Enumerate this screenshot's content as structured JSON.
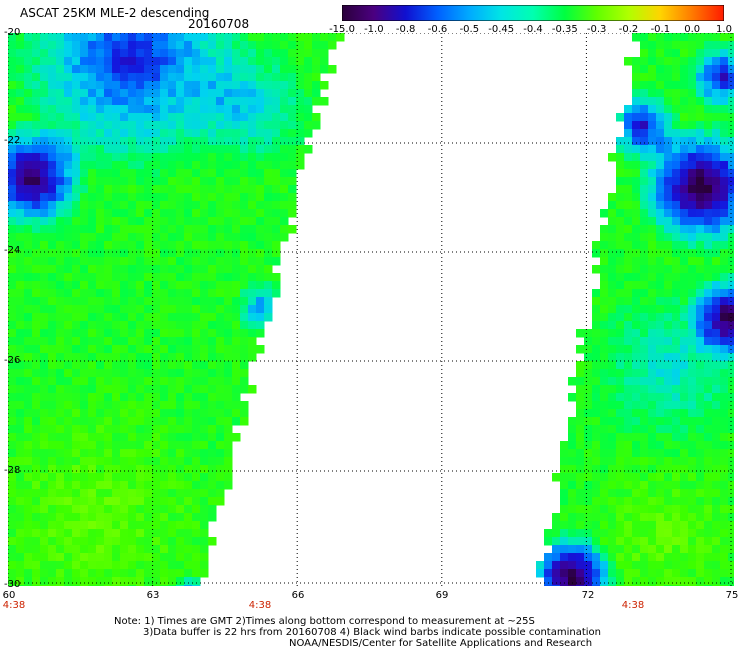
{
  "header": {
    "title": "ASCAT 25KM MLE-2 descending",
    "date": "20160708"
  },
  "colorbar": {
    "ticks": [
      "-15.0",
      "-1.0",
      "-0.8",
      "-0.6",
      "-0.5",
      "-0.45",
      "-0.4",
      "-0.35",
      "-0.3",
      "-0.2",
      "-0.1",
      "0.0",
      "1.0"
    ],
    "colors": [
      "#2a003a",
      "#4b0080",
      "#1010d0",
      "#0060ff",
      "#00aaff",
      "#00e5e5",
      "#00ffb0",
      "#00ff40",
      "#60ff00",
      "#b0ff00",
      "#ffd400",
      "#ff7a00",
      "#ff1a00"
    ]
  },
  "map": {
    "lat_labels": [
      "-20",
      "-22",
      "-24",
      "-26",
      "-28",
      "-30"
    ],
    "lon_labels": [
      "60",
      "63",
      "66",
      "69",
      "72",
      "75"
    ],
    "time_labels": [
      "4:38",
      "4:38",
      "4:38"
    ],
    "lon_range": [
      60,
      75
    ],
    "lat_range": [
      -20,
      -30
    ],
    "gridlines": "dotted"
  },
  "notes": {
    "line1": "Note: 1) Times are GMT 2)Times along bottom correspond to measurement at ~25S",
    "line2": "3)Data buffer is 22 hrs from 20160708 4) Black wind barbs indicate possible contamination",
    "line3": "NOAA/NESDIS/Center for Satellite Applications and Research"
  }
}
